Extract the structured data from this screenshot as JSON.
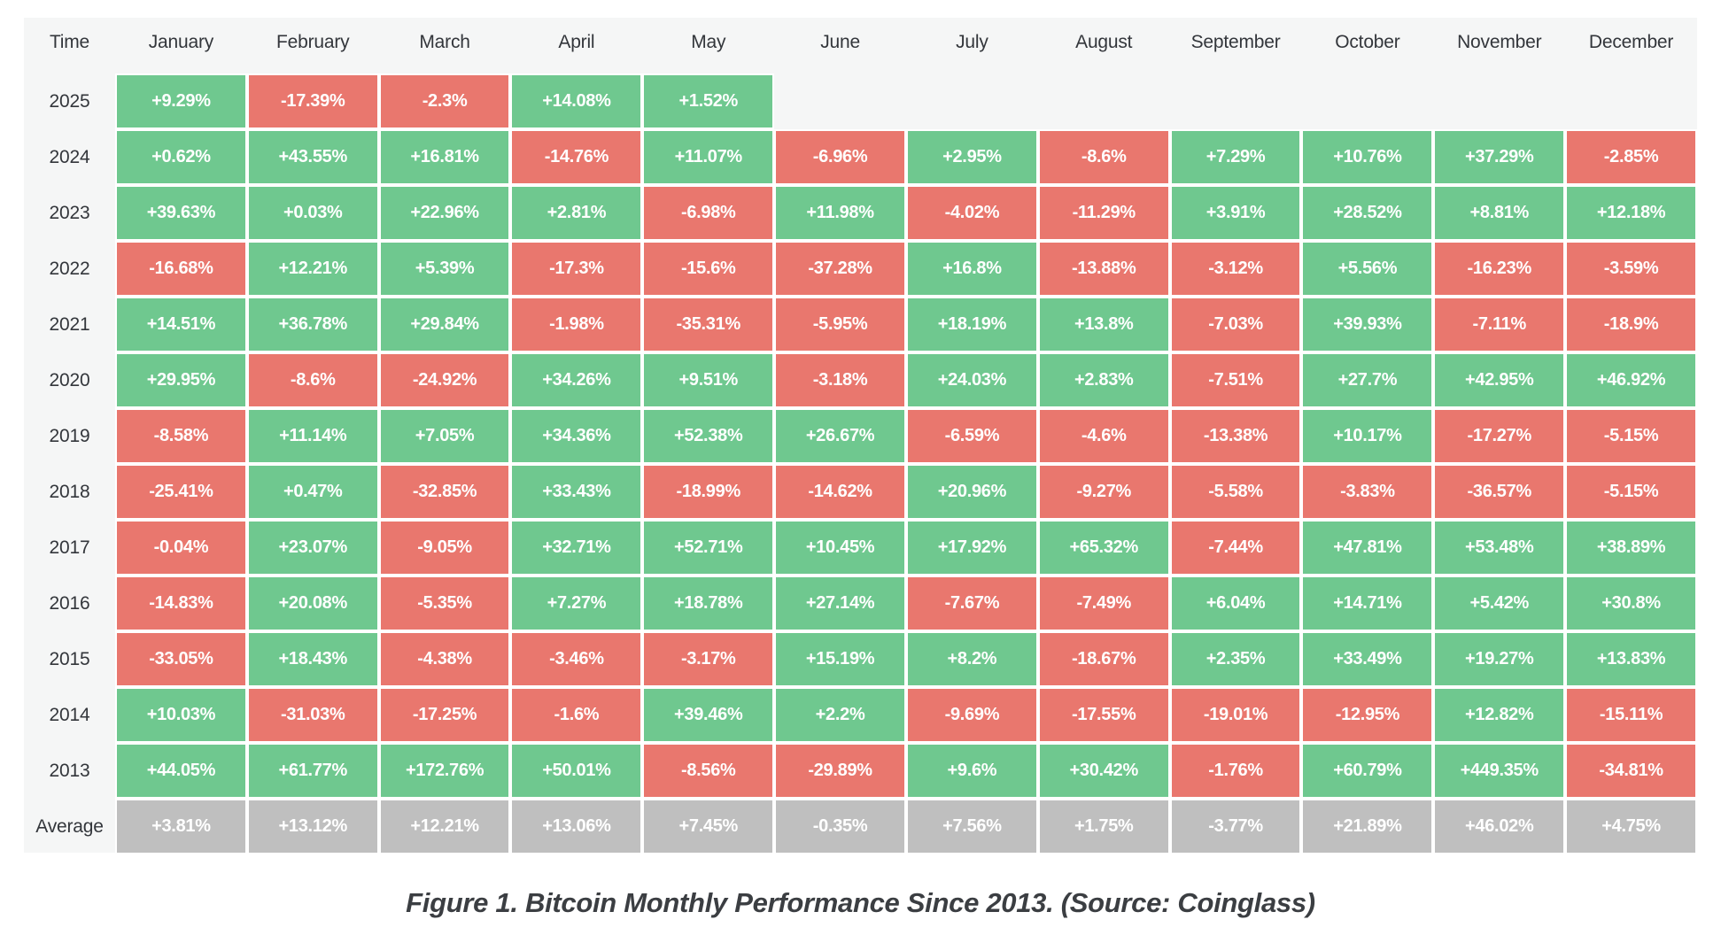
{
  "figure": {
    "caption": "Figure 1. Bitcoin Monthly Performance Since 2013. (Source: Coinglass)"
  },
  "colors": {
    "positive": "#6fc88f",
    "negative": "#e9776e",
    "average": "#bfbfbf",
    "container_bg": "#f5f6f6",
    "cell_text": "#ffffff",
    "header_text": "#33363b"
  },
  "chart_data": {
    "type": "heatmap",
    "title": "Bitcoin Monthly Performance Since 2013",
    "corner_label": "Time",
    "columns": [
      "January",
      "February",
      "March",
      "April",
      "May",
      "June",
      "July",
      "August",
      "September",
      "October",
      "November",
      "December"
    ],
    "rows": [
      {
        "label": "2025",
        "values": [
          "+9.29%",
          "-17.39%",
          "-2.3%",
          "+14.08%",
          "+1.52%",
          null,
          null,
          null,
          null,
          null,
          null,
          null
        ]
      },
      {
        "label": "2024",
        "values": [
          "+0.62%",
          "+43.55%",
          "+16.81%",
          "-14.76%",
          "+11.07%",
          "-6.96%",
          "+2.95%",
          "-8.6%",
          "+7.29%",
          "+10.76%",
          "+37.29%",
          "-2.85%"
        ]
      },
      {
        "label": "2023",
        "values": [
          "+39.63%",
          "+0.03%",
          "+22.96%",
          "+2.81%",
          "-6.98%",
          "+11.98%",
          "-4.02%",
          "-11.29%",
          "+3.91%",
          "+28.52%",
          "+8.81%",
          "+12.18%"
        ]
      },
      {
        "label": "2022",
        "values": [
          "-16.68%",
          "+12.21%",
          "+5.39%",
          "-17.3%",
          "-15.6%",
          "-37.28%",
          "+16.8%",
          "-13.88%",
          "-3.12%",
          "+5.56%",
          "-16.23%",
          "-3.59%"
        ]
      },
      {
        "label": "2021",
        "values": [
          "+14.51%",
          "+36.78%",
          "+29.84%",
          "-1.98%",
          "-35.31%",
          "-5.95%",
          "+18.19%",
          "+13.8%",
          "-7.03%",
          "+39.93%",
          "-7.11%",
          "-18.9%"
        ]
      },
      {
        "label": "2020",
        "values": [
          "+29.95%",
          "-8.6%",
          "-24.92%",
          "+34.26%",
          "+9.51%",
          "-3.18%",
          "+24.03%",
          "+2.83%",
          "-7.51%",
          "+27.7%",
          "+42.95%",
          "+46.92%"
        ]
      },
      {
        "label": "2019",
        "values": [
          "-8.58%",
          "+11.14%",
          "+7.05%",
          "+34.36%",
          "+52.38%",
          "+26.67%",
          "-6.59%",
          "-4.6%",
          "-13.38%",
          "+10.17%",
          "-17.27%",
          "-5.15%"
        ]
      },
      {
        "label": "2018",
        "values": [
          "-25.41%",
          "+0.47%",
          "-32.85%",
          "+33.43%",
          "-18.99%",
          "-14.62%",
          "+20.96%",
          "-9.27%",
          "-5.58%",
          "-3.83%",
          "-36.57%",
          "-5.15%"
        ]
      },
      {
        "label": "2017",
        "values": [
          "-0.04%",
          "+23.07%",
          "-9.05%",
          "+32.71%",
          "+52.71%",
          "+10.45%",
          "+17.92%",
          "+65.32%",
          "-7.44%",
          "+47.81%",
          "+53.48%",
          "+38.89%"
        ]
      },
      {
        "label": "2016",
        "values": [
          "-14.83%",
          "+20.08%",
          "-5.35%",
          "+7.27%",
          "+18.78%",
          "+27.14%",
          "-7.67%",
          "-7.49%",
          "+6.04%",
          "+14.71%",
          "+5.42%",
          "+30.8%"
        ]
      },
      {
        "label": "2015",
        "values": [
          "-33.05%",
          "+18.43%",
          "-4.38%",
          "-3.46%",
          "-3.17%",
          "+15.19%",
          "+8.2%",
          "-18.67%",
          "+2.35%",
          "+33.49%",
          "+19.27%",
          "+13.83%"
        ]
      },
      {
        "label": "2014",
        "values": [
          "+10.03%",
          "-31.03%",
          "-17.25%",
          "-1.6%",
          "+39.46%",
          "+2.2%",
          "-9.69%",
          "-17.55%",
          "-19.01%",
          "-12.95%",
          "+12.82%",
          "-15.11%"
        ]
      },
      {
        "label": "2013",
        "values": [
          "+44.05%",
          "+61.77%",
          "+172.76%",
          "+50.01%",
          "-8.56%",
          "-29.89%",
          "+9.6%",
          "+30.42%",
          "-1.76%",
          "+60.79%",
          "+449.35%",
          "-34.81%"
        ]
      },
      {
        "label": "Average",
        "style": "average",
        "values": [
          "+3.81%",
          "+13.12%",
          "+12.21%",
          "+13.06%",
          "+7.45%",
          "-0.35%",
          "+7.56%",
          "+1.75%",
          "-3.77%",
          "+21.89%",
          "+46.02%",
          "+4.75%"
        ]
      }
    ],
    "layout": {
      "legend": false,
      "grid": false,
      "color_rule": "positive=green, negative=red, average-row=gray, missing=blank",
      "clipped_partial_row_below_average": true
    }
  }
}
